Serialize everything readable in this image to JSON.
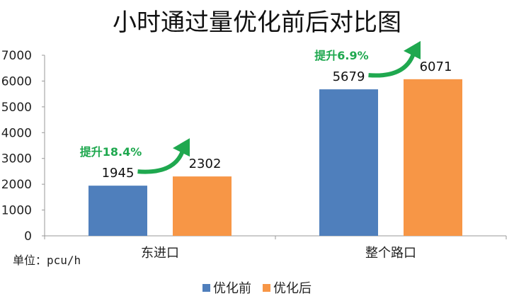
{
  "chart_data": {
    "type": "bar",
    "title": "小时通过量优化前后对比图",
    "unit_label": "单位：pcu/h",
    "categories": [
      "东进口",
      "整个路口"
    ],
    "series": [
      {
        "name": "优化前",
        "values": [
          1945,
          5679
        ],
        "color": "#4f7fbc"
      },
      {
        "name": "优化后",
        "values": [
          2302,
          6071
        ],
        "color": "#f79646"
      }
    ],
    "annotations": [
      "提升18.4%",
      "提升6.9%"
    ],
    "annotation_color": "#1fa84f",
    "ylim": [
      0,
      7000
    ],
    "yticks": [
      0,
      1000,
      2000,
      3000,
      4000,
      5000,
      6000,
      7000
    ],
    "legend_position": "bottom",
    "grid": false
  }
}
